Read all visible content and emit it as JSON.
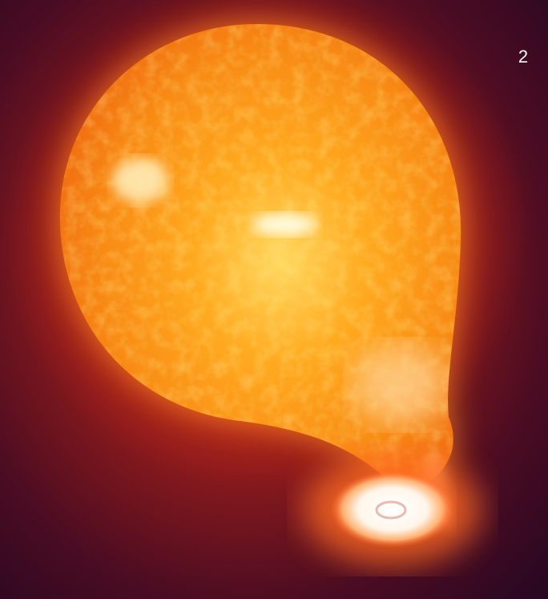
{
  "page_number": "2"
}
